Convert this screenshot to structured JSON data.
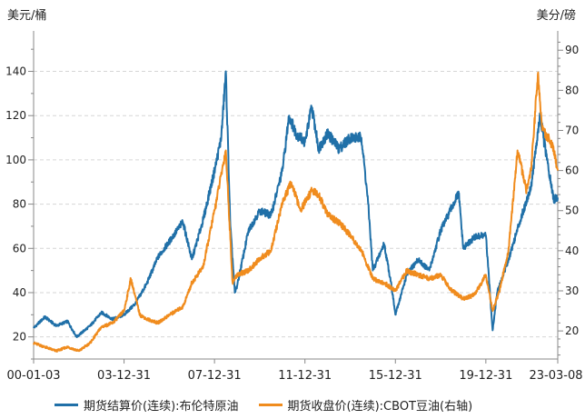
{
  "units": {
    "left": "美元/桶",
    "right": "美分/磅"
  },
  "legend": [
    {
      "label": "期货结算价(连续):布伦特原油",
      "color": "#2070a8"
    },
    {
      "label": "期货收盘价(连续):CBOT豆油(右轴)",
      "color": "#f08c1e"
    }
  ],
  "chart_data": {
    "type": "line",
    "x_ticks": [
      "00-01-03",
      "03-12-31",
      "07-12-31",
      "11-12-31",
      "15-12-31",
      "19-12-31",
      "23-03-08"
    ],
    "x_tick_years": [
      2000.0,
      2004.0,
      2008.0,
      2012.0,
      2016.0,
      2020.0,
      2023.18
    ],
    "x_range": [
      2000.0,
      2023.18
    ],
    "ylim_left": [
      10,
      155
    ],
    "ylim_right": [
      13,
      93
    ],
    "yticks_left": [
      20,
      40,
      60,
      80,
      100,
      120,
      140
    ],
    "yticks_right": [
      20,
      30,
      40,
      50,
      60,
      70,
      80,
      90
    ],
    "grid": "horizontal-dashed",
    "series": [
      {
        "name": "期货结算价(连续):布伦特原油",
        "axis": "left",
        "color": "#2070a8",
        "x": [
          2000.0,
          2000.5,
          2001.0,
          2001.5,
          2001.9,
          2002.5,
          2003.0,
          2003.5,
          2004.0,
          2004.5,
          2005.0,
          2005.5,
          2006.0,
          2006.6,
          2007.0,
          2007.5,
          2008.0,
          2008.3,
          2008.5,
          2008.7,
          2008.9,
          2009.0,
          2009.5,
          2010.0,
          2010.5,
          2011.0,
          2011.3,
          2011.6,
          2012.0,
          2012.3,
          2012.6,
          2013.0,
          2013.5,
          2014.0,
          2014.5,
          2014.8,
          2015.0,
          2015.5,
          2015.8,
          2016.0,
          2016.5,
          2017.0,
          2017.5,
          2018.0,
          2018.8,
          2019.0,
          2019.5,
          2020.0,
          2020.3,
          2020.5,
          2021.0,
          2021.5,
          2022.0,
          2022.4,
          2022.7,
          2023.0,
          2023.18
        ],
        "y": [
          24,
          29,
          25,
          27,
          20,
          25,
          31,
          28,
          30,
          35,
          44,
          56,
          63,
          72,
          55,
          73,
          95,
          110,
          140,
          70,
          40,
          43,
          68,
          77,
          75,
          95,
          120,
          112,
          108,
          124,
          105,
          112,
          105,
          110,
          110,
          80,
          50,
          62,
          45,
          30,
          48,
          55,
          50,
          68,
          85,
          60,
          65,
          66,
          23,
          40,
          55,
          72,
          88,
          120,
          100,
          82,
          83
        ]
      },
      {
        "name": "期货收盘价(连续):CBOT豆油(右轴)",
        "axis": "right",
        "color": "#f08c1e",
        "x": [
          2000.0,
          2000.5,
          2001.0,
          2001.5,
          2002.0,
          2002.5,
          2003.0,
          2003.5,
          2004.0,
          2004.3,
          2004.7,
          2005.0,
          2005.5,
          2006.0,
          2006.6,
          2007.0,
          2007.5,
          2008.0,
          2008.5,
          2008.8,
          2009.0,
          2009.5,
          2010.0,
          2010.5,
          2011.0,
          2011.4,
          2011.8,
          2012.3,
          2012.6,
          2013.0,
          2013.5,
          2014.0,
          2014.5,
          2015.0,
          2015.5,
          2016.0,
          2016.5,
          2017.0,
          2017.5,
          2018.0,
          2018.5,
          2019.0,
          2019.5,
          2020.0,
          2020.3,
          2020.6,
          2021.0,
          2021.4,
          2021.8,
          2022.0,
          2022.3,
          2022.5,
          2022.8,
          2023.0,
          2023.18
        ],
        "y": [
          17,
          16,
          15,
          16,
          15,
          17,
          21,
          22,
          25,
          33,
          24,
          23,
          22,
          24,
          26,
          32,
          36,
          50,
          65,
          32,
          34,
          35,
          38,
          40,
          52,
          57,
          50,
          55,
          54,
          49,
          47,
          44,
          40,
          33,
          32,
          30,
          35,
          34,
          33,
          34,
          30,
          28,
          29,
          34,
          25,
          30,
          40,
          65,
          55,
          60,
          84,
          70,
          68,
          65,
          60
        ]
      }
    ]
  }
}
